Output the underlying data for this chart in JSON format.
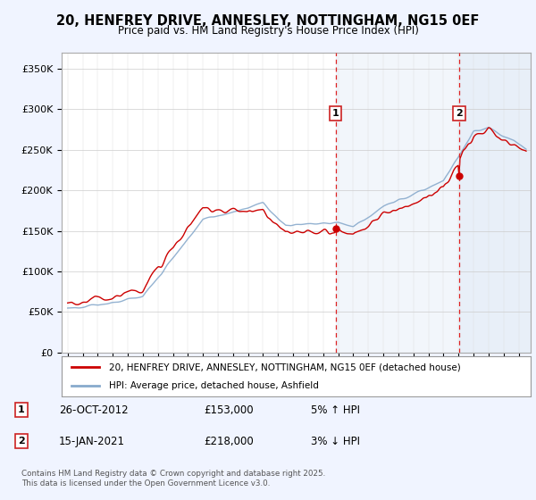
{
  "title": "20, HENFREY DRIVE, ANNESLEY, NOTTINGHAM, NG15 0EF",
  "subtitle": "Price paid vs. HM Land Registry's House Price Index (HPI)",
  "ylabel_ticks": [
    "£0",
    "£50K",
    "£100K",
    "£150K",
    "£200K",
    "£250K",
    "£300K",
    "£350K"
  ],
  "ytick_values": [
    0,
    50000,
    100000,
    150000,
    200000,
    250000,
    300000,
    350000
  ],
  "ylim": [
    0,
    370000
  ],
  "background_color": "#f0f4ff",
  "plot_bg_color": "#ffffff",
  "line1_color": "#cc0000",
  "line2_color": "#88aacc",
  "vline_color": "#dd2222",
  "span_color": "#ccddf0",
  "marker1_year": 2012.82,
  "marker2_year": 2021.04,
  "marker1_price": 153000,
  "marker2_price": 218000,
  "legend_label1": "20, HENFREY DRIVE, ANNESLEY, NOTTINGHAM, NG15 0EF (detached house)",
  "legend_label2": "HPI: Average price, detached house, Ashfield",
  "footer": "Contains HM Land Registry data © Crown copyright and database right 2025.\nThis data is licensed under the Open Government Licence v3.0.",
  "title_fontsize": 10.5,
  "subtitle_fontsize": 8.5
}
